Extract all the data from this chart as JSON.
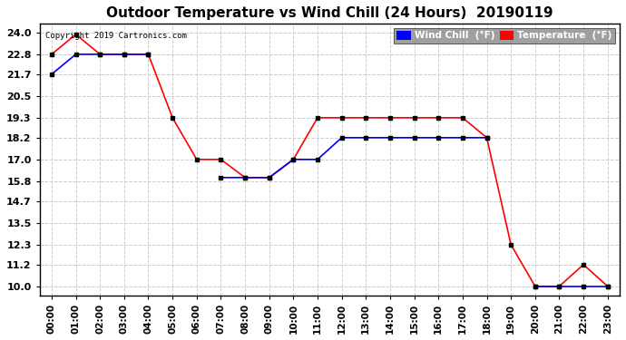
{
  "title": "Outdoor Temperature vs Wind Chill (24 Hours)  20190119",
  "copyright": "Copyright 2019 Cartronics.com",
  "yticks": [
    10.0,
    11.2,
    12.3,
    13.5,
    14.7,
    15.8,
    17.0,
    18.2,
    19.3,
    20.5,
    21.7,
    22.8,
    24.0
  ],
  "xtick_labels": [
    "00:00",
    "01:00",
    "02:00",
    "03:00",
    "04:00",
    "05:00",
    "06:00",
    "07:00",
    "08:00",
    "09:00",
    "10:00",
    "11:00",
    "12:00",
    "13:00",
    "14:00",
    "15:00",
    "16:00",
    "17:00",
    "18:00",
    "19:00",
    "20:00",
    "21:00",
    "22:00",
    "23:00"
  ],
  "ylim": [
    9.5,
    24.5
  ],
  "temp_color": "#ff0000",
  "wind_color": "#0000ff",
  "marker_color": "#000000",
  "bg_color": "#ffffff",
  "grid_color": "#cccccc",
  "temperature": [
    22.8,
    23.9,
    22.8,
    22.8,
    22.8,
    19.3,
    17.0,
    17.0,
    16.0,
    16.0,
    17.0,
    19.3,
    19.3,
    19.3,
    19.3,
    19.3,
    19.3,
    19.3,
    18.2,
    12.3,
    10.0,
    10.0,
    11.2,
    10.0
  ],
  "wind_chill": [
    21.7,
    22.8,
    22.8,
    22.8,
    22.8,
    null,
    null,
    16.0,
    16.0,
    16.0,
    17.0,
    17.0,
    18.2,
    18.2,
    18.2,
    18.2,
    18.2,
    18.2,
    18.2,
    null,
    10.0,
    10.0,
    10.0,
    10.0
  ],
  "hours": [
    0,
    1,
    2,
    3,
    4,
    5,
    6,
    7,
    8,
    9,
    10,
    11,
    12,
    13,
    14,
    15,
    16,
    17,
    18,
    19,
    20,
    21,
    22,
    23
  ],
  "wind_label": "Wind Chill  (°F)",
  "temp_label": "Temperature  (°F)"
}
